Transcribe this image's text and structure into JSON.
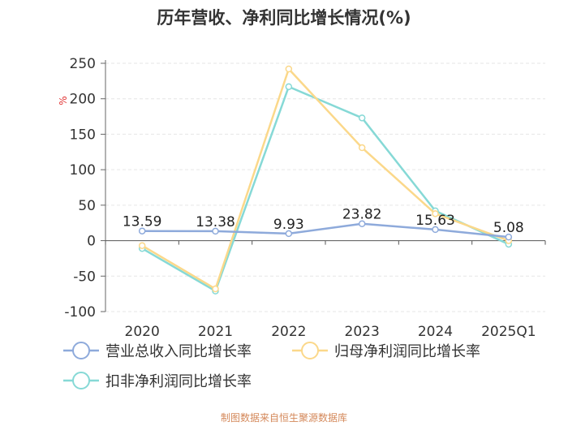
{
  "chart_data": {
    "type": "line",
    "title": "历年营收、净利同比增长情况(%)",
    "ylabel": "%",
    "x": [
      "2020",
      "2021",
      "2022",
      "2023",
      "2024",
      "2025Q1"
    ],
    "ylim": [
      -100,
      250
    ],
    "yticks": [
      250,
      200,
      150,
      100,
      50,
      0,
      -50,
      -100
    ],
    "grid": true,
    "legend_position": "bottom",
    "series": [
      {
        "name": "营业总收入同比增长率",
        "color": "#8eaadb",
        "values": [
          13.59,
          13.38,
          9.93,
          23.82,
          15.63,
          5.08
        ],
        "show_labels": true
      },
      {
        "name": "归母净利润同比增长率",
        "color": "#fbd88a",
        "values": [
          -7,
          -68,
          242,
          131,
          38,
          0
        ],
        "show_labels": false
      },
      {
        "name": "扣非净利润同比增长率",
        "color": "#86d9d6",
        "values": [
          -11,
          -71,
          217,
          173,
          42,
          -5
        ],
        "show_labels": false
      }
    ]
  },
  "footer": "制图数据来自恒生聚源数据库"
}
